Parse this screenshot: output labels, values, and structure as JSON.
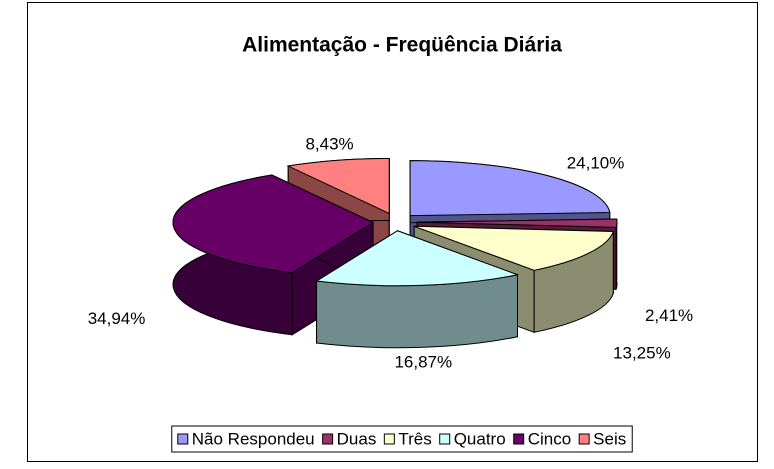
{
  "chart_data": {
    "type": "pie3d",
    "title": "Alimentação - Freqüência Diária",
    "categories": [
      "Não Respondeu",
      "Duas",
      "Três",
      "Quatro",
      "Cinco",
      "Seis"
    ],
    "values": [
      24.1,
      2.41,
      13.25,
      16.87,
      34.94,
      8.43
    ],
    "value_labels": [
      "24,10%",
      "2,41%",
      "13,25%",
      "16,87%",
      "34,94%",
      "8,43%"
    ],
    "colors": [
      "#9999ff",
      "#993366",
      "#ffffcc",
      "#ccffff",
      "#660066",
      "#ff8080"
    ],
    "legend": "bottom"
  }
}
